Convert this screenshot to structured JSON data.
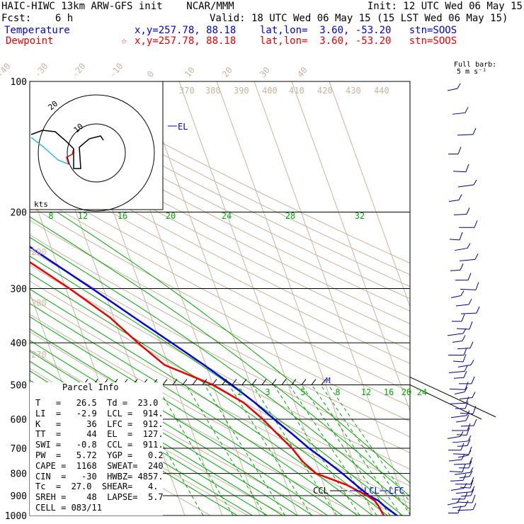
{
  "header": {
    "model": "HAIC-HIWC 13km ARW-GFS init    NCAR/MMM",
    "init": "Init: 12 UTC Wed 06 May 15",
    "fcst": "Fcst:    6 h",
    "valid": "Valid: 18 UTC Wed 06 May 15 (15 LST Wed 06 May 15)",
    "temp_label": "Temperature",
    "temp_info": "x,y=257.78, 88.18    lat,lon=  3.60, -53.20   stn=SOOS",
    "dew_label": "Dewpoint",
    "dew_star": "☆",
    "dew_info": "x,y=257.78, 88.18    lat,lon=  3.60, -53.20   stn=SOOS",
    "barb_legend_1": "Full barb:",
    "barb_legend_2": "5 m s⁻¹"
  },
  "parcel_info": {
    "title": "Parcel Info",
    "rows": [
      "T   =   26.5  Td =  23.0",
      "LI  =   -2.9  LCL =  914.",
      "K   =     36  LFC =  912.",
      "TT  =     44  EL  =  127.",
      "SWI =   -0.8  CCL =  911.",
      "PW  =   5.72  YGP =   0.2",
      "CAPE =  1168  SWEAT=  240",
      "CIN  =   -30  HWBZ= 4857.",
      "Tc  =  27.0  SHEAR=   4.",
      "SREH =    48  LAPSE=  5.7",
      "CELL = 083/11"
    ]
  },
  "hodograph": {
    "ring_labels": [
      "20",
      "10"
    ],
    "units": "kts"
  },
  "colors": {
    "temperature": "#0000dd",
    "dewpoint": "#ee0000",
    "isotherm": "#c8b4a0",
    "mixing_ratio": "#00aa00",
    "isobar": "#000000",
    "barb": "#000088"
  },
  "chart_data": {
    "type": "line",
    "title": "",
    "pressure_levels": [
      "100",
      "200",
      "300",
      "400",
      "500",
      "600",
      "700",
      "800",
      "900",
      "1000"
    ],
    "ylim_hPa": [
      100,
      1000
    ],
    "isotherm_labels": [
      {
        "t": -80,
        "label": "-80"
      },
      {
        "t": -70,
        "label": "-70"
      },
      {
        "t": -60,
        "label": "-60"
      },
      {
        "t": -50,
        "label": "-50"
      },
      {
        "t": -40,
        "label": "-40"
      },
      {
        "t": -30,
        "label": "-30"
      },
      {
        "t": -20,
        "label": "-20"
      },
      {
        "t": -10,
        "label": "-10"
      },
      {
        "t": 0,
        "label": "0"
      },
      {
        "t": 10,
        "label": "10"
      },
      {
        "t": 20,
        "label": "20"
      },
      {
        "t": 30,
        "label": "30"
      },
      {
        "t": 40,
        "label": "40"
      }
    ],
    "theta_labels": [
      {
        "theta": 370,
        "label": "370"
      },
      {
        "theta": 380,
        "label": "380"
      },
      {
        "theta": 390,
        "label": "390"
      },
      {
        "theta": 400,
        "label": "400"
      },
      {
        "theta": 410,
        "label": "410"
      },
      {
        "theta": 420,
        "label": "420"
      },
      {
        "theta": 430,
        "label": "430"
      },
      {
        "theta": 440,
        "label": "440"
      },
      {
        "theta": 290,
        "label": "290"
      },
      {
        "theta": 280,
        "label": "280"
      },
      {
        "theta": 270,
        "label": "270"
      }
    ],
    "mixing_ratio_upper": [
      "8",
      "12",
      "16",
      "20",
      "24",
      "28",
      "32"
    ],
    "mixing_ratio_lower": [
      "2",
      "3",
      "5",
      "8",
      "12",
      "16",
      "20",
      "24"
    ],
    "series": [
      {
        "name": "Temperature",
        "p": [
          1000,
          950,
          925,
          900,
          850,
          800,
          750,
          700,
          650,
          600,
          550,
          500,
          450,
          400,
          350,
          300,
          250,
          200,
          150,
          125,
          100
        ],
        "t": [
          26.5,
          24.0,
          23.0,
          21.0,
          18.5,
          16.0,
          13.0,
          9.5,
          6.5,
          3.0,
          -0.5,
          -5.0,
          -10.5,
          -17.0,
          -24.5,
          -33.0,
          -43.5,
          -55.5,
          -70.0,
          -77.0,
          -79.0
        ]
      },
      {
        "name": "Dewpoint",
        "p": [
          1000,
          950,
          925,
          900,
          850,
          800,
          750,
          700,
          650,
          600,
          550,
          500,
          450,
          400,
          350,
          300,
          250,
          200,
          150,
          125,
          100
        ],
        "t": [
          23.0,
          22.5,
          22.0,
          20.5,
          16.0,
          9.0,
          6.5,
          5.0,
          2.5,
          0.0,
          -3.5,
          -10.0,
          -21.0,
          -26.0,
          -31.0,
          -39.0,
          -49.5,
          -61.5,
          -76.0,
          -84.0,
          -86.0
        ]
      }
    ],
    "annotations": {
      "el": "EL",
      "ccl": "CCL",
      "lcl": "LCL",
      "lfc": "LFC",
      "m": "M"
    }
  }
}
